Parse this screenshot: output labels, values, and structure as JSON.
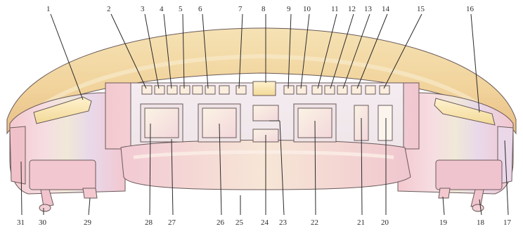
{
  "diagram": {
    "subject": "console-illustration",
    "palette": {
      "canopy": "#f3d9a6",
      "canopy_shadow": "#e9c48a",
      "body_pink": "#f1c6d4",
      "body_light": "#f8e3e8",
      "panel_face": "#f6efdf",
      "lens_gold": "#f5df9a",
      "button_face": "#fbeede",
      "ink": "#2a2a2a"
    },
    "labels": [
      {
        "id": "1",
        "text": "1"
      },
      {
        "id": "2",
        "text": "2"
      },
      {
        "id": "3",
        "text": "3"
      },
      {
        "id": "4",
        "text": "4"
      },
      {
        "id": "5",
        "text": "5"
      },
      {
        "id": "6",
        "text": "6"
      },
      {
        "id": "7",
        "text": "7"
      },
      {
        "id": "8",
        "text": "8"
      },
      {
        "id": "9",
        "text": "9"
      },
      {
        "id": "10",
        "text": "10"
      },
      {
        "id": "11",
        "text": "11"
      },
      {
        "id": "12",
        "text": "12"
      },
      {
        "id": "13",
        "text": "13"
      },
      {
        "id": "14",
        "text": "14"
      },
      {
        "id": "15",
        "text": "15"
      },
      {
        "id": "16",
        "text": "16"
      },
      {
        "id": "17",
        "text": "17"
      },
      {
        "id": "18",
        "text": "18"
      },
      {
        "id": "19",
        "text": "19"
      },
      {
        "id": "20",
        "text": "20"
      },
      {
        "id": "21",
        "text": "21"
      },
      {
        "id": "22",
        "text": "22"
      },
      {
        "id": "23",
        "text": "23"
      },
      {
        "id": "24",
        "text": "24"
      },
      {
        "id": "25",
        "text": "25"
      },
      {
        "id": "26",
        "text": "26"
      },
      {
        "id": "27",
        "text": "27"
      },
      {
        "id": "28",
        "text": "28"
      },
      {
        "id": "29",
        "text": "29"
      },
      {
        "id": "30",
        "text": "30"
      },
      {
        "id": "31",
        "text": "31"
      }
    ]
  }
}
